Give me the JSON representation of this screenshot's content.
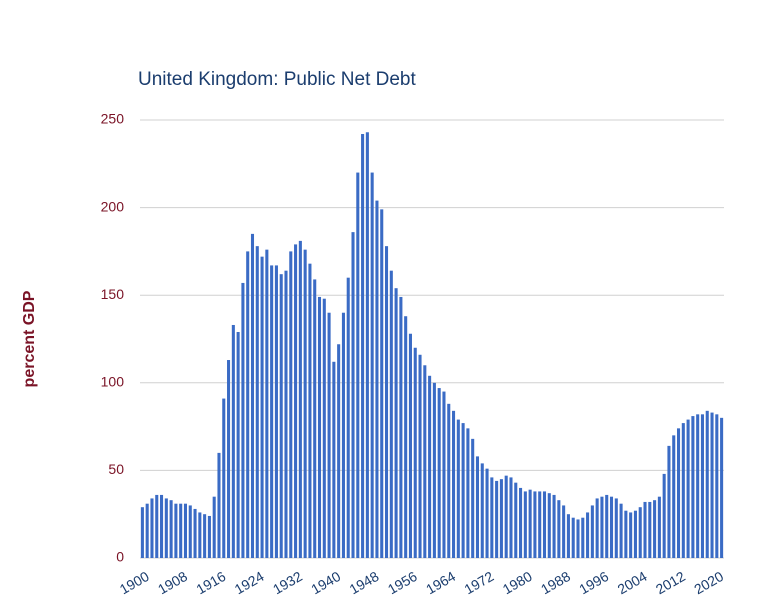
{
  "chart_data": {
    "type": "bar",
    "title": "United Kingdom: Public Net Debt",
    "y_label": "percent GDP",
    "x": [
      1900,
      1901,
      1902,
      1903,
      1904,
      1905,
      1906,
      1907,
      1908,
      1909,
      1910,
      1911,
      1912,
      1913,
      1914,
      1915,
      1916,
      1917,
      1918,
      1919,
      1920,
      1921,
      1922,
      1923,
      1924,
      1925,
      1926,
      1927,
      1928,
      1929,
      1930,
      1931,
      1932,
      1933,
      1934,
      1935,
      1936,
      1937,
      1938,
      1939,
      1940,
      1941,
      1942,
      1943,
      1944,
      1945,
      1946,
      1947,
      1948,
      1949,
      1950,
      1951,
      1952,
      1953,
      1954,
      1955,
      1956,
      1957,
      1958,
      1959,
      1960,
      1961,
      1962,
      1963,
      1964,
      1965,
      1966,
      1967,
      1968,
      1969,
      1970,
      1971,
      1972,
      1973,
      1974,
      1975,
      1976,
      1977,
      1978,
      1979,
      1980,
      1981,
      1982,
      1983,
      1984,
      1985,
      1986,
      1987,
      1988,
      1989,
      1990,
      1991,
      1992,
      1993,
      1994,
      1995,
      1996,
      1997,
      1998,
      1999,
      2000,
      2001,
      2002,
      2003,
      2004,
      2005,
      2006,
      2007,
      2008,
      2009,
      2010,
      2011,
      2012,
      2013,
      2014,
      2015,
      2016,
      2017,
      2018,
      2019,
      2020,
      2021
    ],
    "values": [
      29,
      31,
      34,
      36,
      36,
      34,
      33,
      31,
      31,
      31,
      30,
      28,
      26,
      25,
      24,
      35,
      60,
      91,
      113,
      133,
      129,
      157,
      175,
      185,
      178,
      172,
      176,
      167,
      167,
      162,
      164,
      175,
      179,
      181,
      176,
      168,
      159,
      149,
      148,
      140,
      112,
      122,
      140,
      160,
      186,
      220,
      242,
      243,
      220,
      204,
      199,
      178,
      164,
      154,
      149,
      138,
      128,
      120,
      116,
      110,
      104,
      100,
      97,
      95,
      88,
      84,
      79,
      77,
      74,
      68,
      58,
      54,
      51,
      46,
      44,
      45,
      47,
      46,
      43,
      40,
      38,
      39,
      38,
      38,
      38,
      37,
      36,
      33,
      30,
      25,
      23,
      22,
      23,
      26,
      30,
      34,
      35,
      36,
      35,
      34,
      31,
      27,
      26,
      27,
      29,
      32,
      32,
      33,
      35,
      48,
      64,
      70,
      74,
      77,
      79,
      81,
      82,
      82,
      84,
      83,
      82,
      80
    ],
    "color": "#3a6bc5",
    "xlim": [
      1899.5,
      2021.5
    ],
    "xticks": [
      1900,
      1908,
      1916,
      1924,
      1932,
      1940,
      1948,
      1956,
      1964,
      1972,
      1980,
      1988,
      1996,
      2004,
      2012,
      2020
    ],
    "ylim": [
      0,
      250
    ],
    "yticks": [
      0,
      50,
      100,
      150,
      200,
      250
    ],
    "grid": true
  }
}
